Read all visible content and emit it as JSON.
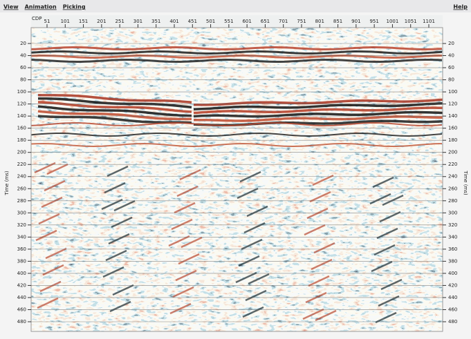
{
  "menu": [
    "View",
    "Animation",
    "Picking"
  ],
  "help": "Help",
  "x_axis": {
    "label": "CDP",
    "ticks": [
      51,
      101,
      151,
      201,
      251,
      301,
      351,
      401,
      451,
      501,
      551,
      601,
      651,
      701,
      751,
      801,
      851,
      901,
      951,
      1001,
      1051,
      1101
    ]
  },
  "y_axis": {
    "label": "Time (ms)",
    "ticks": [
      20,
      40,
      60,
      80,
      100,
      120,
      140,
      160,
      180,
      200,
      220,
      240,
      260,
      280,
      300,
      320,
      340,
      360,
      380,
      400,
      420,
      440,
      460,
      480
    ]
  }
}
